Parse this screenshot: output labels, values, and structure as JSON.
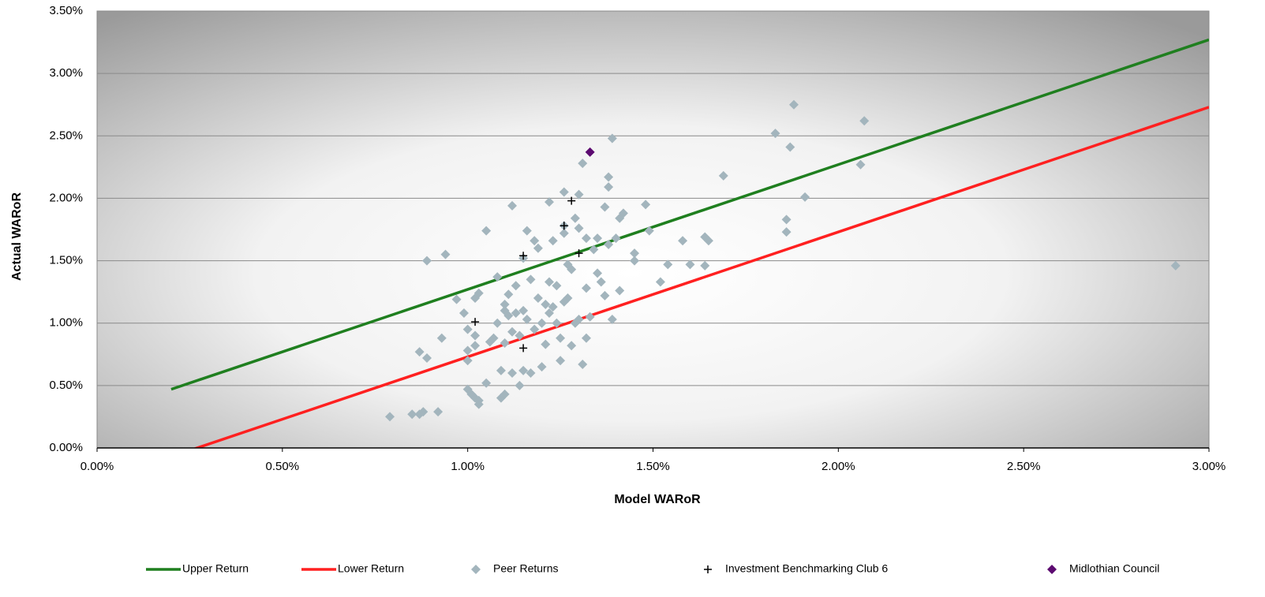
{
  "chart_data": {
    "type": "scatter",
    "x_label": "Model WARoR",
    "y_label": "Actual WARoR",
    "xlim": [
      0,
      3
    ],
    "ylim": [
      0,
      3.5
    ],
    "xticks": [
      {
        "value": 0,
        "label": "0.00%"
      },
      {
        "value": 0.5,
        "label": "0.50%"
      },
      {
        "value": 1,
        "label": "1.00%"
      },
      {
        "value": 1.5,
        "label": "1.50%"
      },
      {
        "value": 2,
        "label": "2.00%"
      },
      {
        "value": 2.5,
        "label": "2.50%"
      },
      {
        "value": 3,
        "label": "3.00%"
      }
    ],
    "yticks": [
      {
        "value": 0,
        "label": "0.00%"
      },
      {
        "value": 0.5,
        "label": "0.50%"
      },
      {
        "value": 1,
        "label": "1.00%"
      },
      {
        "value": 1.5,
        "label": "1.50%"
      },
      {
        "value": 2,
        "label": "2.00%"
      },
      {
        "value": 2.5,
        "label": "2.50%"
      },
      {
        "value": 3,
        "label": "3.00%"
      },
      {
        "value": 3.5,
        "label": "3.50%"
      }
    ],
    "grid": true,
    "legend": "bottom",
    "series": [
      {
        "name": "Upper Return",
        "type": "line",
        "color": "#1f7f1f",
        "x": [
          0.2,
          3.0
        ],
        "values": [
          0.47,
          3.27
        ]
      },
      {
        "name": "Lower Return",
        "type": "line",
        "color": "#ff2020",
        "x": [
          0.25,
          3.0
        ],
        "values": [
          -0.02,
          2.73
        ]
      },
      {
        "name": "Peer Returns",
        "type": "scatter",
        "marker": "diamond",
        "color": "#a3b5bd",
        "x": [
          0.79,
          0.85,
          0.87,
          0.88,
          0.92,
          0.87,
          0.89,
          0.89,
          0.94,
          0.93,
          0.97,
          0.99,
          1.0,
          1.0,
          1.0,
          1.0,
          1.01,
          1.02,
          1.03,
          1.03,
          1.02,
          1.02,
          1.02,
          1.03,
          1.05,
          1.05,
          1.06,
          1.07,
          1.08,
          1.08,
          1.09,
          1.09,
          1.1,
          1.1,
          1.1,
          1.1,
          1.11,
          1.11,
          1.12,
          1.12,
          1.12,
          1.13,
          1.13,
          1.14,
          1.14,
          1.15,
          1.15,
          1.15,
          1.16,
          1.16,
          1.17,
          1.17,
          1.18,
          1.18,
          1.19,
          1.19,
          1.2,
          1.2,
          1.21,
          1.21,
          1.22,
          1.22,
          1.22,
          1.23,
          1.23,
          1.24,
          1.24,
          1.25,
          1.25,
          1.26,
          1.26,
          1.26,
          1.26,
          1.27,
          1.27,
          1.28,
          1.28,
          1.29,
          1.29,
          1.3,
          1.3,
          1.3,
          1.31,
          1.31,
          1.32,
          1.32,
          1.32,
          1.33,
          1.34,
          1.35,
          1.35,
          1.36,
          1.37,
          1.37,
          1.38,
          1.38,
          1.38,
          1.39,
          1.39,
          1.4,
          1.41,
          1.41,
          1.42,
          1.45,
          1.45,
          1.48,
          1.49,
          1.52,
          1.54,
          1.58,
          1.6,
          1.64,
          1.64,
          1.65,
          1.69,
          1.83,
          1.86,
          1.86,
          1.87,
          1.88,
          1.91,
          2.06,
          2.07,
          2.91
        ],
        "values": [
          0.25,
          0.27,
          0.27,
          0.29,
          0.29,
          0.77,
          0.72,
          1.5,
          1.55,
          0.88,
          1.19,
          1.08,
          0.95,
          0.78,
          0.7,
          0.47,
          0.43,
          0.4,
          0.35,
          0.38,
          0.9,
          0.82,
          1.2,
          1.24,
          1.74,
          0.52,
          0.85,
          0.88,
          1.37,
          1.0,
          0.62,
          0.4,
          0.43,
          0.84,
          1.1,
          1.15,
          1.23,
          1.06,
          0.6,
          0.93,
          1.94,
          1.3,
          1.08,
          0.5,
          0.9,
          1.52,
          0.62,
          1.1,
          1.74,
          1.03,
          0.6,
          1.35,
          0.95,
          1.66,
          1.6,
          1.2,
          0.65,
          1.0,
          0.83,
          1.15,
          1.33,
          1.97,
          1.08,
          1.66,
          1.13,
          1.3,
          1.0,
          0.7,
          0.88,
          1.17,
          1.72,
          1.78,
          2.05,
          1.47,
          1.2,
          0.82,
          1.43,
          1.0,
          1.84,
          1.76,
          2.03,
          1.03,
          2.28,
          0.67,
          0.88,
          1.68,
          1.28,
          1.05,
          1.59,
          1.4,
          1.68,
          1.33,
          1.93,
          1.22,
          2.09,
          2.17,
          1.63,
          2.48,
          1.03,
          1.68,
          1.84,
          1.26,
          1.88,
          1.56,
          1.5,
          1.95,
          1.74,
          1.33,
          1.47,
          1.66,
          1.47,
          1.46,
          1.69,
          1.66,
          2.18,
          2.52,
          1.73,
          1.83,
          2.41,
          2.75,
          2.01,
          2.27,
          2.62,
          1.46
        ]
      },
      {
        "name": "Investment Benchmarking Club 6",
        "type": "scatter",
        "marker": "plus",
        "color": "#000000",
        "x": [
          1.02,
          1.15,
          1.15,
          1.26,
          1.28,
          1.3
        ],
        "values": [
          1.01,
          1.54,
          0.8,
          1.78,
          1.98,
          1.56
        ]
      },
      {
        "name": "Midlothian Council",
        "type": "scatter",
        "marker": "diamond",
        "color": "#5c0a70",
        "x": [
          1.33
        ],
        "values": [
          2.37
        ]
      }
    ]
  }
}
